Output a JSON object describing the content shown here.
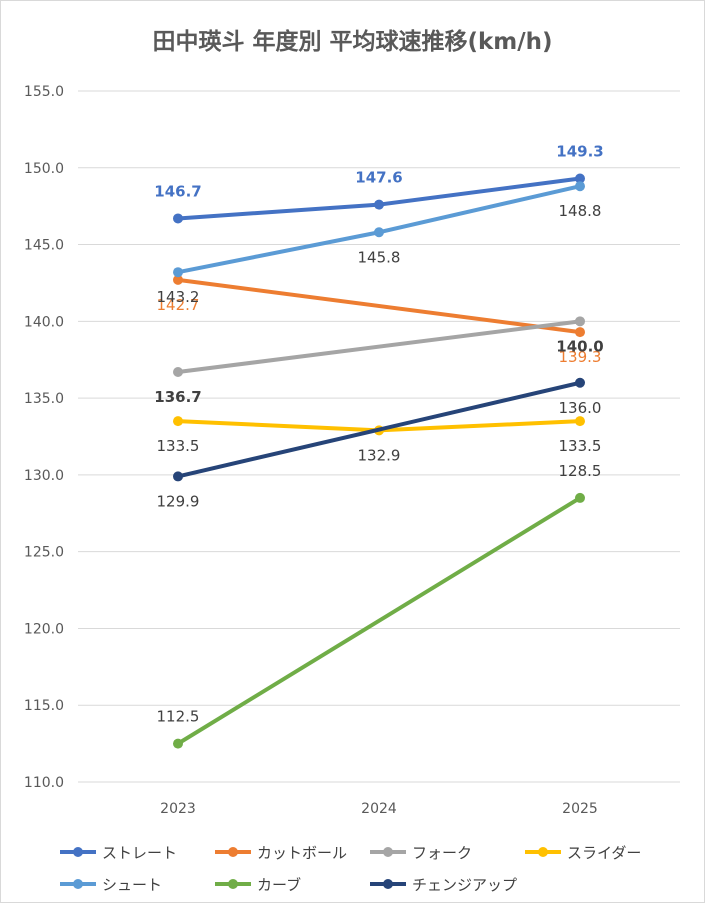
{
  "chart_data": {
    "type": "line",
    "title": "田中瑛斗 年度別 平均球速推移(km/h)",
    "categories": [
      "2023",
      "2024",
      "2025"
    ],
    "ylim": [
      110.0,
      155.0
    ],
    "yticks": [
      "155.0",
      "150.0",
      "145.0",
      "140.0",
      "135.0",
      "130.0",
      "125.0",
      "120.0",
      "115.0",
      "110.0"
    ],
    "grid": true,
    "legend_position": "bottom",
    "series": [
      {
        "name": "ストレート",
        "color": "#4472C4",
        "values": [
          146.7,
          147.6,
          149.3
        ],
        "labels": [
          "146.7",
          "147.6",
          "149.3"
        ],
        "label_positions": [
          "above",
          "above",
          "above"
        ]
      },
      {
        "name": "カットボール",
        "color": "#ED7D31",
        "values": [
          142.7,
          null,
          139.3
        ],
        "labels": [
          "142.7",
          "",
          "139.3"
        ],
        "label_positions": [
          "below",
          "",
          "below"
        ]
      },
      {
        "name": "フォーク",
        "color": "#A5A5A5",
        "values": [
          136.7,
          null,
          140.0
        ],
        "labels": [
          "136.7",
          "",
          "140.0"
        ],
        "label_positions": [
          "below",
          "",
          "below"
        ]
      },
      {
        "name": "スライダー",
        "color": "#FFC000",
        "values": [
          133.5,
          132.9,
          133.5
        ],
        "labels": [
          "133.5",
          "132.9",
          "133.5"
        ],
        "label_positions": [
          "below",
          "below",
          "below"
        ]
      },
      {
        "name": "シュート",
        "color": "#5B9BD5",
        "values": [
          143.2,
          145.8,
          148.8
        ],
        "labels": [
          "143.2",
          "145.8",
          "148.8"
        ],
        "label_positions": [
          "below",
          "below",
          "below"
        ]
      },
      {
        "name": "カーブ",
        "color": "#70AD47",
        "values": [
          112.5,
          null,
          128.5
        ],
        "labels": [
          "112.5",
          "",
          "128.5"
        ],
        "label_positions": [
          "above",
          "",
          "above"
        ]
      },
      {
        "name": "チェンジアップ",
        "color": "#264478",
        "values": [
          129.9,
          null,
          136.0
        ],
        "labels": [
          "129.9",
          "",
          "136.0"
        ],
        "label_positions": [
          "below",
          "",
          "below"
        ]
      }
    ]
  }
}
